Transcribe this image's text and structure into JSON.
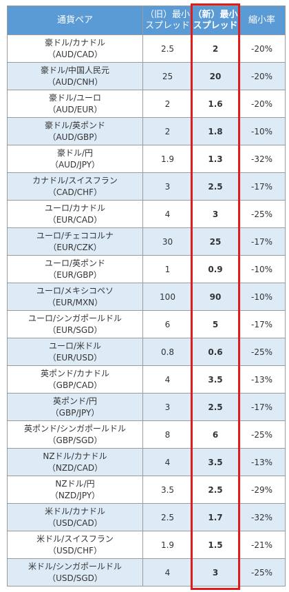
{
  "header": {
    "pair": "通貨ペア",
    "old_line1": "（旧）最小",
    "old_line2": "スプレッド",
    "new_line1": "（新）最小",
    "new_line2": "スプレッド",
    "rate": "縮小率"
  },
  "rows": [
    {
      "name": "豪ドル/カナドル",
      "code": "（AUD/CAD）",
      "old": "2.5",
      "new": "2",
      "rate": "-20%"
    },
    {
      "name": "豪ドル/中国人民元",
      "code": "（AUD/CNH）",
      "old": "25",
      "new": "20",
      "rate": "-20%"
    },
    {
      "name": "豪ドル/ユーロ",
      "code": "（AUD/EUR）",
      "old": "2",
      "new": "1.6",
      "rate": "-20%"
    },
    {
      "name": "豪ドル/英ポンド",
      "code": "（AUD/GBP）",
      "old": "2",
      "new": "1.8",
      "rate": "-10%"
    },
    {
      "name": "豪ドル/円",
      "code": "（AUD/JPY）",
      "old": "1.9",
      "new": "1.3",
      "rate": "-32%"
    },
    {
      "name": "カナドル/スイスフラン",
      "code": "（CAD/CHF）",
      "old": "3",
      "new": "2.5",
      "rate": "-17%"
    },
    {
      "name": "ユーロ/カナドル",
      "code": "（EUR/CAD）",
      "old": "4",
      "new": "3",
      "rate": "-25%"
    },
    {
      "name": "ユーロ/チェココルナ",
      "code": "（EUR/CZK）",
      "old": "30",
      "new": "25",
      "rate": "-17%"
    },
    {
      "name": "ユーロ/英ポンド",
      "code": "（EUR/GBP）",
      "old": "1",
      "new": "0.9",
      "rate": "-10%"
    },
    {
      "name": "ユーロ/メキシコペソ",
      "code": "（EUR/MXN）",
      "old": "100",
      "new": "90",
      "rate": "-10%"
    },
    {
      "name": "ユーロ/シンガポールドル",
      "code": "（EUR/SGD）",
      "old": "6",
      "new": "5",
      "rate": "-17%"
    },
    {
      "name": "ユーロ/米ドル",
      "code": "（EUR/USD）",
      "old": "0.8",
      "new": "0.6",
      "rate": "-25%"
    },
    {
      "name": "英ポンド/カナドル",
      "code": "（GBP/CAD）",
      "old": "4",
      "new": "3.5",
      "rate": "-13%"
    },
    {
      "name": "英ポンド/円",
      "code": "（GBP/JPY）",
      "old": "3",
      "new": "2.5",
      "rate": "-17%"
    },
    {
      "name": "英ポンド/シンガポールドル",
      "code": "（GBP/SGD）",
      "old": "8",
      "new": "6",
      "rate": "-25%"
    },
    {
      "name": "NZドル/カナドル",
      "code": "（NZD/CAD）",
      "old": "4",
      "new": "3.5",
      "rate": "-13%"
    },
    {
      "name": "NZドル/円",
      "code": "（NZD/JPY）",
      "old": "3.5",
      "new": "2.5",
      "rate": "-29%"
    },
    {
      "name": "米ドル/カナドル",
      "code": "（USD/CAD）",
      "old": "2.5",
      "new": "1.7",
      "rate": "-32%"
    },
    {
      "name": "米ドル/スイスフラン",
      "code": "（USD/CHF）",
      "old": "1.9",
      "new": "1.5",
      "rate": "-21%"
    },
    {
      "name": "米ドル/シンガポールドル",
      "code": "（USD/SGD）",
      "old": "4",
      "new": "3",
      "rate": "-25%"
    }
  ],
  "colors": {
    "header_bg": "#5b9bd5",
    "alt_row_bg": "#ddebf7",
    "highlight_border": "#e01b1b"
  }
}
